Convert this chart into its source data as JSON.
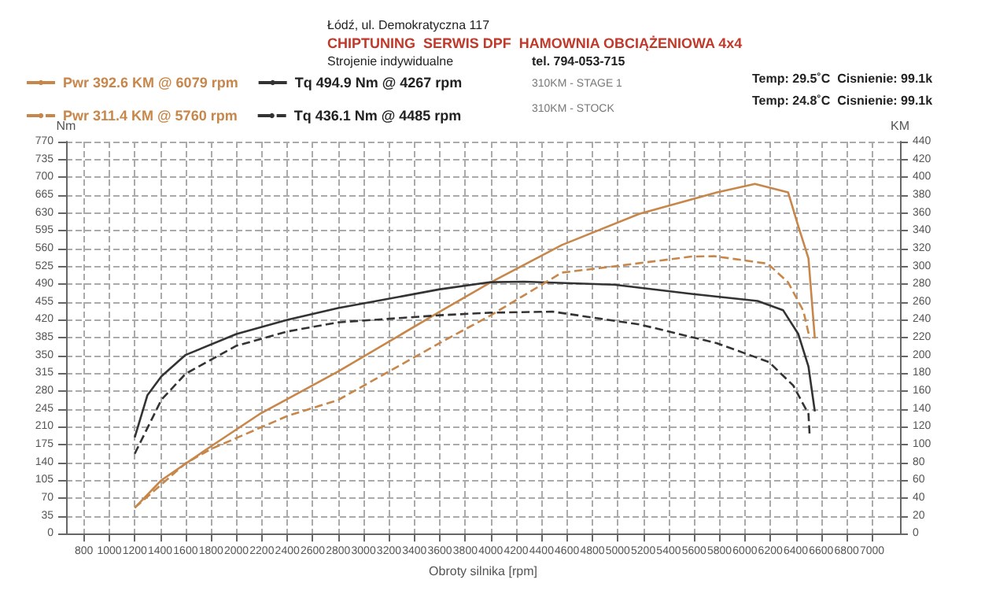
{
  "chart_data": {
    "type": "line",
    "xlabel": "Obroty silnika [rpm]",
    "ylabel": "Nm",
    "y2label": "KM",
    "annotations": [
      "Łódź, ul. Demokratyczna 117",
      "CHIPTUNING  SERWIS DPF  HAMOWNIA OBCIĄŻENIOWA 4x4",
      "Strojenie indywidualne",
      "tel. 794-053-715",
      "310KM - STAGE 1",
      "310KM - STOCK",
      "Temp: 29.5˚C  Cisnienie: 99.1k",
      "Temp: 24.8˚C  Cisnienie: 99.1k"
    ],
    "xlim": [
      660,
      7220
    ],
    "xticks": [
      800,
      1000,
      1200,
      1400,
      1600,
      1800,
      2000,
      2200,
      2400,
      2600,
      2800,
      3000,
      3200,
      3400,
      3600,
      3800,
      4000,
      4200,
      4400,
      4600,
      4800,
      5000,
      5200,
      5400,
      5600,
      5800,
      6000,
      6200,
      6400,
      6600,
      6800,
      7000
    ],
    "ylim": [
      0,
      770
    ],
    "yticks": [
      0,
      35,
      70,
      105,
      140,
      175,
      210,
      245,
      280,
      315,
      350,
      385,
      420,
      455,
      490,
      525,
      560,
      595,
      630,
      665,
      700,
      735,
      770
    ],
    "y2lim": [
      0,
      440
    ],
    "y2ticks": [
      0,
      20,
      40,
      60,
      80,
      100,
      120,
      140,
      160,
      180,
      200,
      220,
      240,
      260,
      280,
      300,
      320,
      340,
      360,
      380,
      400,
      420,
      440
    ],
    "grid": true,
    "legend": "top left",
    "marker": "none",
    "series": [
      {
        "name": "Pwr 392.6 KM @ 6079 rpm",
        "color": "#c8874a",
        "axis": "y2",
        "line_style": "solid",
        "x": [
          1200,
          1410,
          1800,
          2180,
          2800,
          3610,
          4000,
          4560,
          5170,
          5780,
          6079,
          6340,
          6420,
          6500,
          6550
        ],
        "values": [
          29,
          60,
          98,
          134,
          182,
          250,
          282,
          324,
          359,
          383,
          392.6,
          383,
          345,
          309,
          219
        ]
      },
      {
        "name": "Tq 494.9 Nm @ 4267 rpm",
        "color": "#333333",
        "axis": "y",
        "line_style": "solid",
        "x": [
          1200,
          1300,
          1410,
          1600,
          2000,
          2400,
          2800,
          3600,
          4000,
          4267,
          4970,
          5580,
          6100,
          6300,
          6420,
          6500,
          6550
        ],
        "values": [
          189,
          272,
          309,
          351,
          392,
          420,
          443,
          480,
          494,
          494.9,
          489,
          471,
          457,
          439,
          392,
          328,
          240
        ]
      },
      {
        "name": "Pwr 311.4 KM @ 5760 rpm",
        "color": "#c8874a",
        "axis": "y2",
        "line_style": "dashed",
        "x": [
          1200,
          1600,
          1800,
          2400,
          2800,
          3600,
          4000,
          4560,
          4970,
          5580,
          5760,
          6180,
          6340,
          6460,
          6510
        ],
        "values": [
          29,
          79,
          95,
          132,
          150,
          214,
          245,
          293,
          300,
          311,
          311.4,
          303,
          282,
          250,
          219
        ]
      },
      {
        "name": "Tq 436.1 Nm @ 4485 rpm",
        "color": "#333333",
        "axis": "y",
        "line_style": "dashed",
        "x": [
          1200,
          1410,
          1600,
          2000,
          2400,
          2800,
          3600,
          4000,
          4485,
          5170,
          5780,
          6190,
          6380,
          6500,
          6510
        ],
        "values": [
          157,
          263,
          314,
          369,
          397,
          415,
          429,
          434,
          436.1,
          411,
          374,
          337,
          291,
          235,
          189
        ]
      }
    ]
  }
}
